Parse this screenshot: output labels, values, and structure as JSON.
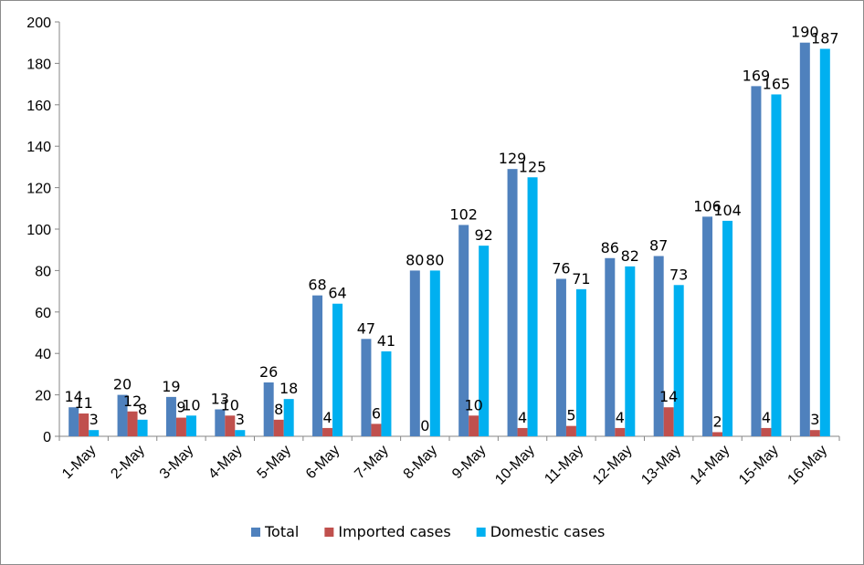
{
  "chart_data": {
    "type": "bar",
    "title": "",
    "xlabel": "",
    "ylabel": "",
    "categories": [
      "1-May",
      "2-May",
      "3-May",
      "4-May",
      "5-May",
      "6-May",
      "7-May",
      "8-May",
      "9-May",
      "10-May",
      "11-May",
      "12-May",
      "13-May",
      "14-May",
      "15-May",
      "16-May"
    ],
    "series": [
      {
        "name": "Total",
        "color": "#4f81bd",
        "values": [
          14,
          20,
          19,
          13,
          26,
          68,
          47,
          80,
          102,
          129,
          76,
          86,
          87,
          106,
          169,
          190
        ]
      },
      {
        "name": "Imported cases",
        "color": "#c0504d",
        "values": [
          11,
          12,
          9,
          10,
          8,
          4,
          6,
          0,
          10,
          4,
          5,
          4,
          14,
          2,
          4,
          3
        ]
      },
      {
        "name": "Domestic cases",
        "color": "#00b0f0",
        "values": [
          3,
          8,
          10,
          3,
          18,
          64,
          41,
          80,
          92,
          125,
          71,
          82,
          73,
          104,
          165,
          187
        ]
      }
    ],
    "ylim": [
      0,
      200
    ],
    "yticks": [
      "0",
      "20",
      "40",
      "60",
      "80",
      "100",
      "120",
      "140",
      "160",
      "180",
      "200"
    ],
    "grid": false,
    "legend_position": "bottom",
    "data_labels": true,
    "xtick_rotation": -45
  }
}
